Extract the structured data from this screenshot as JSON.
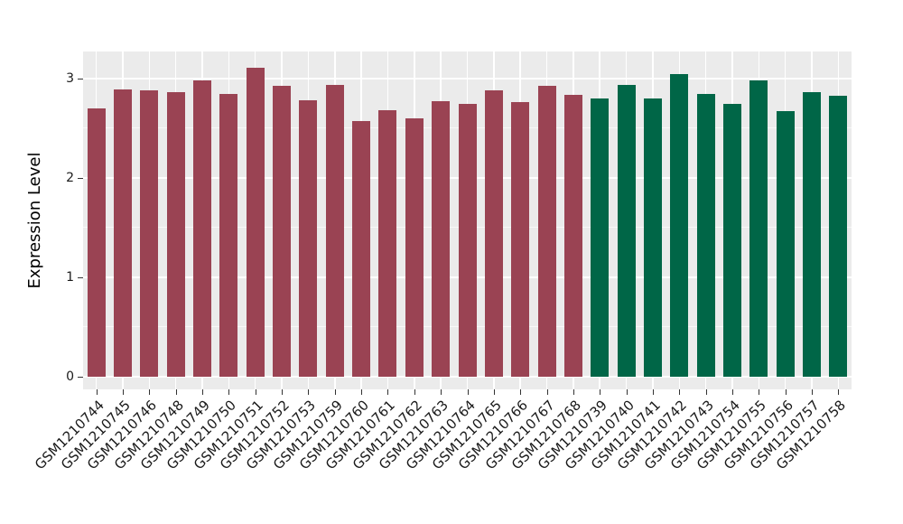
{
  "figure": {
    "background": "#FFFFFF",
    "panel_background": "#EBEBEB",
    "gridline_color": "#FFFFFF",
    "tick_color": "#333333",
    "axis_text_color": "#1A1A1A"
  },
  "chart_data": {
    "type": "bar",
    "title": "",
    "xlabel": "",
    "ylabel": "Expression Level",
    "ylim": [
      0,
      3.27
    ],
    "yticks": [
      0,
      1,
      2,
      3
    ],
    "y_minor_gridlines": [
      0.5,
      1.5,
      2.5
    ],
    "grid": true,
    "legend": "none",
    "x_tick_angle": 45,
    "categories": [
      "GSM1210744",
      "GSM1210745",
      "GSM1210746",
      "GSM1210748",
      "GSM1210749",
      "GSM1210750",
      "GSM1210751",
      "GSM1210752",
      "GSM1210753",
      "GSM1210759",
      "GSM1210760",
      "GSM1210761",
      "GSM1210762",
      "GSM1210763",
      "GSM1210764",
      "GSM1210765",
      "GSM1210766",
      "GSM1210767",
      "GSM1210768",
      "GSM1210739",
      "GSM1210740",
      "GSM1210741",
      "GSM1210742",
      "GSM1210743",
      "GSM1210754",
      "GSM1210755",
      "GSM1210756",
      "GSM1210757",
      "GSM1210758"
    ],
    "values": [
      2.7,
      2.89,
      2.88,
      2.86,
      2.98,
      2.85,
      3.11,
      2.93,
      2.78,
      2.94,
      2.57,
      2.68,
      2.6,
      2.77,
      2.75,
      2.88,
      2.76,
      2.93,
      2.84,
      2.8,
      2.94,
      2.8,
      3.05,
      2.85,
      2.75,
      2.98,
      2.67,
      2.86,
      2.83
    ],
    "groups": [
      0,
      0,
      0,
      0,
      0,
      0,
      0,
      0,
      0,
      0,
      0,
      0,
      0,
      0,
      0,
      0,
      0,
      0,
      0,
      1,
      1,
      1,
      1,
      1,
      1,
      1,
      1,
      1,
      1
    ],
    "group_colors": [
      "#9A4353",
      "#006647"
    ]
  }
}
